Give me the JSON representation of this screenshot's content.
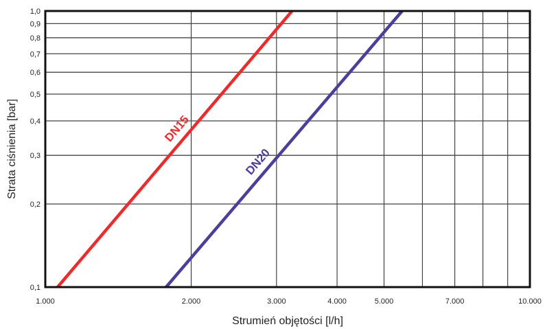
{
  "chart_data": {
    "type": "line",
    "xscale": "log",
    "yscale": "log",
    "xlim": [
      1000,
      10000
    ],
    "ylim": [
      0.1,
      1.0
    ],
    "xlabel": "Strumień objętości [l/h]",
    "ylabel": "Strata ciśnienia [bar]",
    "grid": true,
    "x_ticks": [
      {
        "value": 1000,
        "label": "1.000"
      },
      {
        "value": 2000,
        "label": "2.000"
      },
      {
        "value": 3000,
        "label": "3.000"
      },
      {
        "value": 4000,
        "label": "4.000"
      },
      {
        "value": 5000,
        "label": "5.000"
      },
      {
        "value": 7000,
        "label": "7.000"
      },
      {
        "value": 10000,
        "label": "10.000"
      }
    ],
    "x_gridlines": [
      2000,
      3000,
      4000,
      5000,
      6000,
      7000,
      8000,
      9000
    ],
    "y_ticks": [
      {
        "value": 0.1,
        "label": "0,1"
      },
      {
        "value": 0.2,
        "label": "0,2"
      },
      {
        "value": 0.3,
        "label": "0,3"
      },
      {
        "value": 0.4,
        "label": "0,4"
      },
      {
        "value": 0.5,
        "label": "0,5"
      },
      {
        "value": 0.6,
        "label": "0,6"
      },
      {
        "value": 0.7,
        "label": "0,7"
      },
      {
        "value": 0.8,
        "label": "0,8"
      },
      {
        "value": 0.9,
        "label": "0,9"
      },
      {
        "value": 1.0,
        "label": "1,0"
      }
    ],
    "series": [
      {
        "name": "DN15",
        "color": "#ee2a2a",
        "points": [
          [
            1060,
            0.1
          ],
          [
            3230,
            1.0
          ]
        ]
      },
      {
        "name": "DN20",
        "color": "#4a3f9a",
        "points": [
          [
            1775,
            0.1
          ],
          [
            5450,
            1.0
          ]
        ]
      }
    ]
  }
}
